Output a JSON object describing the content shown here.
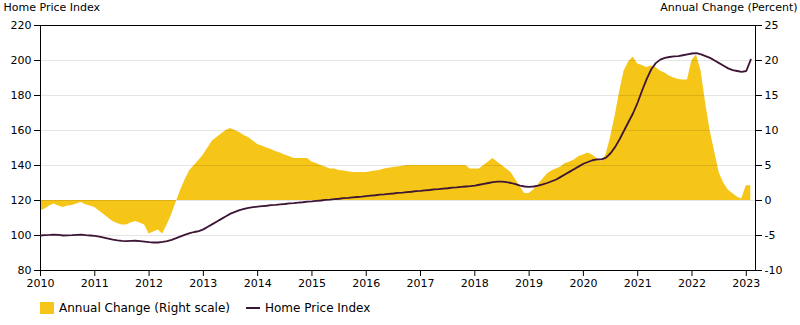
{
  "chart_data": {
    "type": "line",
    "ylabel": "Home Price Index",
    "y2label": "Annual Change (Percent)",
    "x": [
      2010.0,
      2010.083,
      2010.167,
      2010.25,
      2010.333,
      2010.417,
      2010.5,
      2010.583,
      2010.667,
      2010.75,
      2010.833,
      2010.917,
      2011.0,
      2011.083,
      2011.167,
      2011.25,
      2011.333,
      2011.417,
      2011.5,
      2011.583,
      2011.667,
      2011.75,
      2011.833,
      2011.917,
      2012.0,
      2012.083,
      2012.167,
      2012.25,
      2012.333,
      2012.417,
      2012.5,
      2012.583,
      2012.667,
      2012.75,
      2012.833,
      2012.917,
      2013.0,
      2013.083,
      2013.167,
      2013.25,
      2013.333,
      2013.417,
      2013.5,
      2013.583,
      2013.667,
      2013.75,
      2013.833,
      2013.917,
      2014.0,
      2014.083,
      2014.167,
      2014.25,
      2014.333,
      2014.417,
      2014.5,
      2014.583,
      2014.667,
      2014.75,
      2014.833,
      2014.917,
      2015.0,
      2015.083,
      2015.167,
      2015.25,
      2015.333,
      2015.417,
      2015.5,
      2015.583,
      2015.667,
      2015.75,
      2015.833,
      2015.917,
      2016.0,
      2016.083,
      2016.167,
      2016.25,
      2016.333,
      2016.417,
      2016.5,
      2016.583,
      2016.667,
      2016.75,
      2016.833,
      2016.917,
      2017.0,
      2017.083,
      2017.167,
      2017.25,
      2017.333,
      2017.417,
      2017.5,
      2017.583,
      2017.667,
      2017.75,
      2017.833,
      2017.917,
      2018.0,
      2018.083,
      2018.167,
      2018.25,
      2018.333,
      2018.417,
      2018.5,
      2018.583,
      2018.667,
      2018.75,
      2018.833,
      2018.917,
      2019.0,
      2019.083,
      2019.167,
      2019.25,
      2019.333,
      2019.417,
      2019.5,
      2019.583,
      2019.667,
      2019.75,
      2019.833,
      2019.917,
      2020.0,
      2020.083,
      2020.167,
      2020.25,
      2020.333,
      2020.417,
      2020.5,
      2020.583,
      2020.667,
      2020.75,
      2020.833,
      2020.917,
      2021.0,
      2021.083,
      2021.167,
      2021.25,
      2021.333,
      2021.417,
      2021.5,
      2021.583,
      2021.667,
      2021.75,
      2021.833,
      2021.917,
      2022.0,
      2022.083,
      2022.167,
      2022.25,
      2022.333,
      2022.417,
      2022.5,
      2022.583,
      2022.667,
      2022.75,
      2022.833,
      2022.917,
      2023.0,
      2023.083
    ],
    "series": [
      {
        "name": "Annual Change (Right scale)",
        "type": "area",
        "color": "#F5C518",
        "axis": "y2",
        "values": [
          -1.5,
          -1.2,
          -0.8,
          -0.5,
          -0.8,
          -1.0,
          -0.8,
          -0.7,
          -0.5,
          -0.3,
          -0.6,
          -0.8,
          -1.0,
          -1.5,
          -2.0,
          -2.5,
          -3.0,
          -3.3,
          -3.5,
          -3.5,
          -3.2,
          -3.0,
          -3.2,
          -3.5,
          -4.8,
          -4.5,
          -4.2,
          -4.8,
          -3.5,
          -2.0,
          -0.2,
          1.5,
          3.0,
          4.3,
          5.0,
          5.7,
          6.5,
          7.5,
          8.5,
          9.0,
          9.5,
          10.0,
          10.3,
          10.0,
          9.7,
          9.3,
          9.0,
          8.5,
          8.0,
          7.8,
          7.5,
          7.3,
          7.0,
          6.8,
          6.5,
          6.3,
          6.0,
          6.0,
          6.0,
          6.0,
          5.5,
          5.3,
          5.0,
          4.8,
          4.5,
          4.5,
          4.3,
          4.2,
          4.1,
          4.0,
          4.0,
          4.0,
          4.0,
          4.1,
          4.2,
          4.3,
          4.5,
          4.6,
          4.7,
          4.8,
          4.9,
          5.0,
          5.0,
          5.0,
          5.0,
          5.0,
          5.0,
          5.0,
          5.0,
          5.0,
          5.0,
          5.0,
          5.0,
          5.0,
          5.0,
          4.5,
          4.5,
          4.5,
          5.0,
          5.5,
          6.0,
          5.5,
          5.0,
          4.5,
          4.0,
          3.0,
          2.0,
          1.0,
          1.0,
          1.5,
          2.3,
          3.0,
          3.8,
          4.2,
          4.5,
          4.8,
          5.3,
          5.5,
          5.8,
          6.3,
          6.5,
          6.8,
          6.5,
          6.0,
          5.5,
          6.5,
          9.0,
          12.0,
          15.5,
          18.5,
          19.8,
          20.5,
          19.5,
          19.3,
          19.0,
          19.2,
          19.0,
          18.5,
          18.2,
          17.8,
          17.5,
          17.3,
          17.2,
          17.2,
          20.0,
          20.8,
          18.5,
          14.0,
          10.0,
          7.0,
          4.0,
          2.5,
          1.5,
          1.0,
          0.5,
          0.2,
          2.1,
          2.1
        ]
      },
      {
        "name": "Home Price Index",
        "type": "line",
        "color": "#3d1535",
        "values": [
          100.0,
          100.2,
          100.3,
          100.5,
          100.3,
          100.0,
          100.1,
          100.2,
          100.4,
          100.5,
          100.2,
          100.0,
          99.8,
          99.3,
          98.8,
          98.2,
          97.6,
          97.2,
          96.9,
          96.8,
          96.9,
          97.0,
          96.8,
          96.5,
          96.2,
          96.0,
          96.0,
          96.3,
          96.8,
          97.5,
          98.5,
          99.5,
          100.5,
          101.3,
          102.0,
          102.5,
          103.5,
          105.0,
          106.5,
          108.0,
          109.5,
          111.0,
          112.5,
          113.5,
          114.5,
          115.2,
          115.8,
          116.2,
          116.5,
          116.8,
          117.0,
          117.3,
          117.5,
          117.8,
          118.0,
          118.3,
          118.5,
          118.8,
          119.0,
          119.3,
          119.5,
          119.8,
          120.0,
          120.3,
          120.5,
          120.8,
          121.0,
          121.3,
          121.5,
          121.8,
          122.0,
          122.2,
          122.5,
          122.8,
          123.0,
          123.3,
          123.5,
          123.8,
          124.0,
          124.3,
          124.5,
          124.8,
          125.0,
          125.3,
          125.5,
          125.8,
          126.0,
          126.3,
          126.5,
          126.8,
          127.0,
          127.3,
          127.5,
          127.8,
          128.0,
          128.2,
          128.5,
          129.0,
          129.5,
          130.0,
          130.5,
          130.8,
          130.8,
          130.5,
          130.0,
          129.3,
          128.5,
          128.0,
          127.8,
          128.0,
          128.5,
          129.2,
          130.0,
          131.0,
          132.0,
          133.5,
          135.0,
          136.5,
          138.0,
          139.5,
          141.0,
          142.0,
          143.0,
          143.5,
          143.5,
          144.5,
          147.0,
          150.5,
          155.0,
          160.0,
          165.0,
          170.0,
          176.0,
          183.0,
          189.5,
          195.0,
          198.5,
          200.5,
          201.5,
          202.0,
          202.3,
          202.5,
          203.0,
          203.5,
          204.0,
          204.2,
          203.5,
          202.5,
          201.5,
          200.0,
          198.5,
          197.0,
          195.5,
          194.5,
          194.0,
          193.5,
          194.0,
          200.5
        ]
      }
    ],
    "xlim": [
      2010,
      2023.17
    ],
    "xticks": [
      2010,
      2011,
      2012,
      2013,
      2014,
      2015,
      2016,
      2017,
      2018,
      2019,
      2020,
      2021,
      2022,
      2023
    ],
    "ylim": [
      80,
      220
    ],
    "yticks": [
      80,
      100,
      120,
      140,
      160,
      180,
      200,
      220
    ],
    "y2lim": [
      -10,
      25
    ],
    "y2ticks": [
      -10,
      -5,
      0,
      5,
      10,
      15,
      20,
      25
    ],
    "grid": true,
    "legend": "lower left"
  }
}
